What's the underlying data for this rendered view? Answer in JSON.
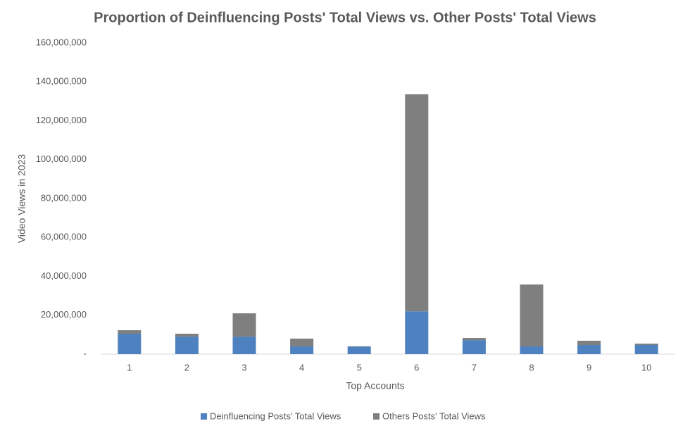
{
  "chart_data": {
    "type": "stacked-bar",
    "title": "Proportion of Deinfluencing Posts' Total Views vs. Other Posts' Total Views",
    "x_label": "Top Accounts",
    "y_label": "Video Views in 2023",
    "categories": [
      "1",
      "2",
      "3",
      "4",
      "5",
      "6",
      "7",
      "8",
      "9",
      "10"
    ],
    "series": [
      {
        "name": "Deinfluencing Posts' Total Views",
        "color": "#4e81c0",
        "values": [
          10500000,
          9000000,
          9000000,
          4000000,
          3800000,
          22000000,
          7200000,
          4000000,
          4700000,
          4700000
        ]
      },
      {
        "name": "Others Posts' Total Views",
        "color": "#7f7f7f",
        "values": [
          1800000,
          1500000,
          12000000,
          4000000,
          200000,
          111600000,
          1100000,
          31800000,
          2200000,
          700000
        ]
      }
    ],
    "ylim": [
      0,
      160000000
    ],
    "yticks": [
      {
        "value": 0,
        "label": "-"
      },
      {
        "value": 20000000,
        "label": "20,000,000"
      },
      {
        "value": 40000000,
        "label": "40,000,000"
      },
      {
        "value": 60000000,
        "label": "60,000,000"
      },
      {
        "value": 80000000,
        "label": "80,000,000"
      },
      {
        "value": 100000000,
        "label": "100,000,000"
      },
      {
        "value": 120000000,
        "label": "120,000,000"
      },
      {
        "value": 140000000,
        "label": "140,000,000"
      },
      {
        "value": 160000000,
        "label": "160,000,000"
      }
    ],
    "grid": false,
    "legend": "bottom"
  }
}
